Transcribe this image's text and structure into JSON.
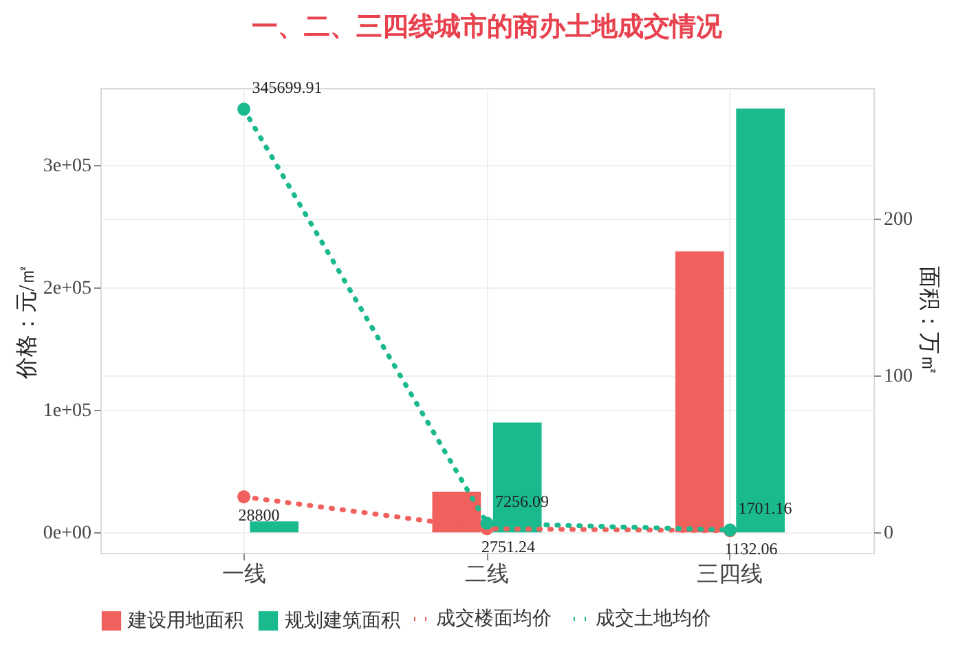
{
  "chart_data": {
    "type": "bar",
    "title": "一、二、三四线城市的商办土地成交情况",
    "categories": [
      "一线",
      "二线",
      "三四线"
    ],
    "ylabel": "价格：元/㎡",
    "y2label": "面积：万㎡",
    "ylim": [
      -17000,
      363000
    ],
    "yticks": [
      {
        "value": 0,
        "label": "0e+00"
      },
      {
        "value": 100000,
        "label": "1e+05"
      },
      {
        "value": 200000,
        "label": "2e+05"
      },
      {
        "value": 300000,
        "label": "3e+05"
      }
    ],
    "y2lim": [
      -13,
      283
    ],
    "y2ticks": [
      0,
      100,
      200
    ],
    "grid": true,
    "legend": "bottom",
    "marker": "circle",
    "line_style": "dotted",
    "series": [
      {
        "name": "成交楼面均价",
        "type": "line",
        "axis": "y",
        "color": "#f0605d",
        "values": [
          28800,
          2751.24,
          1132.06
        ],
        "value_labels": [
          "28800",
          "2751.24",
          "1132.06"
        ]
      },
      {
        "name": "成交土地均价",
        "type": "line",
        "axis": "y",
        "color": "#1ab98e",
        "values": [
          345699.91,
          7256.09,
          1701.16
        ],
        "value_labels": [
          "345699.91",
          "7256.09",
          "1701.16"
        ]
      },
      {
        "name": "建设用地面积",
        "axis": "y2",
        "color": "#f0605d",
        "values": [
          0,
          26,
          179
        ]
      },
      {
        "name": "规划建筑面积",
        "axis": "y2",
        "color": "#1ab98e",
        "values": [
          7,
          70,
          270
        ]
      }
    ]
  }
}
